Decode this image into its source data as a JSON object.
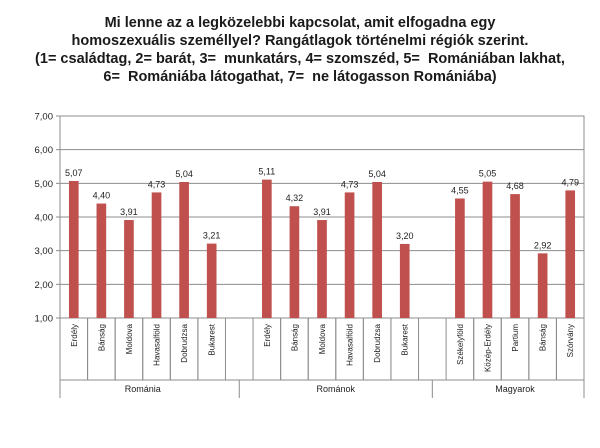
{
  "title_lines": [
    "Mi lenne az a legközelebbi kapcsolat, amit elfogadna egy",
    "homoszexuális személlyel? Rangátlagok történelmi régiók szerint.",
    "(1= családtag, 2= barát, 3=  munkatárs, 4= szomszéd, 5=  Romániában lakhat,",
    "6=  Romániába látogathat, 7=  ne látogasson Romániába)"
  ],
  "chart_data": {
    "type": "bar",
    "ylim": [
      1.0,
      7.0
    ],
    "yticks": [
      "1,00",
      "2,00",
      "3,00",
      "4,00",
      "5,00",
      "6,00",
      "7,00"
    ],
    "grid": "horizontal",
    "bar_color": "#c0504d",
    "groups": [
      {
        "name": "Románia",
        "categories": [
          "Erdély",
          "Bánság",
          "Moldova",
          "Havasalföld",
          "Dobrudzsa",
          "Bukarest"
        ],
        "values": [
          5.07,
          4.4,
          3.91,
          4.73,
          5.04,
          3.21
        ],
        "labels": [
          "5,07",
          "4,40",
          "3,91",
          "4,73",
          "5,04",
          "3,21"
        ]
      },
      {
        "name": "Románok",
        "categories": [
          "Erdély",
          "Bánság",
          "Moldova",
          "Havasalföld",
          "Dobrudzsa",
          "Bukarest"
        ],
        "values": [
          5.11,
          4.32,
          3.91,
          4.73,
          5.04,
          3.2
        ],
        "labels": [
          "5,11",
          "4,32",
          "3,91",
          "4,73",
          "5,04",
          "3,20"
        ]
      },
      {
        "name": "Magyarok",
        "categories": [
          "Székelyföld",
          "Közép-Erdély",
          "Partium",
          "Bánság",
          "Szórvány"
        ],
        "values": [
          4.55,
          5.05,
          4.68,
          2.92,
          4.79
        ],
        "labels": [
          "4,55",
          "5,05",
          "4,68",
          "2,92",
          "4,79"
        ]
      }
    ]
  }
}
